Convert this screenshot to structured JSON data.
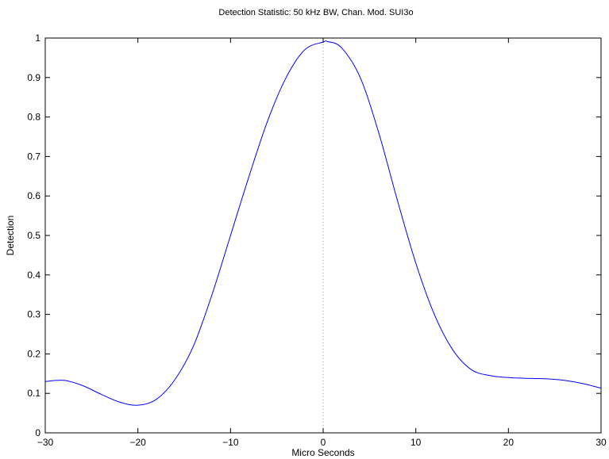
{
  "chart_data": {
    "type": "line",
    "title": "Detection Statistic: 50 kHz BW, Chan. Mod. SUI3o",
    "xlabel": "Micro Seconds",
    "ylabel": "Detection",
    "xlim": [
      -30,
      30
    ],
    "ylim": [
      0,
      1
    ],
    "xticks": [
      -30,
      -20,
      -10,
      0,
      10,
      20,
      30
    ],
    "xtick_labels": [
      "−30",
      "−20",
      "−10",
      "0",
      "10",
      "20",
      "30"
    ],
    "yticks": [
      0,
      0.1,
      0.2,
      0.3,
      0.4,
      0.5,
      0.6,
      0.7,
      0.8,
      0.9,
      1
    ],
    "ytick_labels": [
      "0",
      "0.1",
      "0.2",
      "0.3",
      "0.4",
      "0.5",
      "0.6",
      "0.7",
      "0.8",
      "0.9",
      "1"
    ],
    "grid": false,
    "legend": "none",
    "reference_line": {
      "x": 0,
      "style": "dotted",
      "color": "#999999"
    },
    "series": [
      {
        "color": "#0000ff",
        "x": [
          -30,
          -28,
          -26,
          -24,
          -22,
          -20,
          -18,
          -16,
          -14,
          -12,
          -10,
          -8,
          -6,
          -4,
          -2,
          0,
          0.5,
          2,
          4,
          6,
          8,
          10,
          12,
          14,
          16,
          18,
          20,
          22,
          24,
          26,
          28,
          30
        ],
        "y": [
          0.13,
          0.133,
          0.12,
          0.098,
          0.078,
          0.07,
          0.085,
          0.135,
          0.22,
          0.35,
          0.5,
          0.65,
          0.79,
          0.9,
          0.97,
          0.99,
          0.991,
          0.975,
          0.9,
          0.76,
          0.59,
          0.43,
          0.3,
          0.21,
          0.16,
          0.145,
          0.14,
          0.138,
          0.137,
          0.133,
          0.125,
          0.113
        ]
      }
    ]
  }
}
